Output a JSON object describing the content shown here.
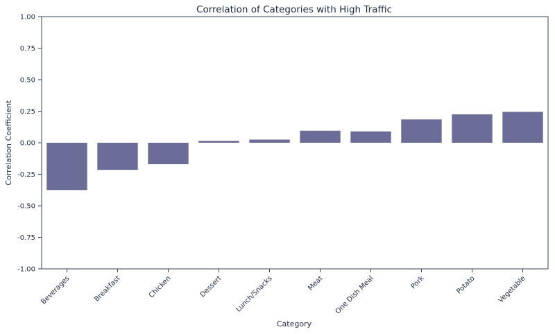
{
  "chart_data": {
    "type": "bar",
    "title": "Correlation of Categories with High Traffic",
    "xlabel": "Category",
    "ylabel": "Correlation Coefficient",
    "ylim": [
      -1.0,
      1.0
    ],
    "yticks": [
      "-1.00",
      "-0.75",
      "-0.50",
      "-0.25",
      "0.00",
      "0.25",
      "0.50",
      "0.75",
      "1.00"
    ],
    "categories": [
      "Beverages",
      "Breakfast",
      "Chicken",
      "Dessert",
      "Lunch/Snacks",
      "Meat",
      "One Dish Meal",
      "Pork",
      "Potato",
      "Vegetable"
    ],
    "values": [
      -0.375,
      -0.215,
      -0.17,
      0.015,
      0.025,
      0.095,
      0.09,
      0.185,
      0.225,
      0.245
    ],
    "grid": false,
    "colors": {
      "bar": "#6b6d98",
      "axis": "#33415c",
      "text": "#1f2a44"
    }
  }
}
